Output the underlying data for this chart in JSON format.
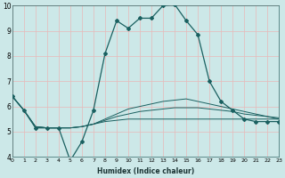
{
  "xlabel": "Humidex (Indice chaleur)",
  "background_color": "#cce8e8",
  "grid_color": "#e8b8b8",
  "line_color": "#1a6060",
  "x_min": 0,
  "x_max": 23,
  "y_min": 4,
  "y_max": 10,
  "line_main": {
    "x": [
      0,
      1,
      2,
      3,
      4,
      5,
      6,
      7,
      8,
      9,
      10,
      11,
      12,
      13,
      14,
      15,
      16,
      17,
      18,
      19,
      20,
      21,
      22,
      23
    ],
    "y": [
      6.4,
      5.85,
      5.15,
      5.15,
      5.15,
      3.85,
      4.6,
      5.85,
      8.1,
      9.4,
      9.1,
      9.5,
      9.5,
      10.0,
      10.05,
      9.4,
      8.85,
      7.0,
      6.2,
      5.85,
      5.5,
      5.4,
      5.4,
      5.4
    ]
  },
  "line_slow1": {
    "x": [
      0,
      1,
      2,
      3,
      4,
      5,
      6,
      7,
      8,
      9,
      10,
      11,
      12,
      13,
      14,
      15,
      16,
      17,
      18,
      19,
      20,
      21,
      22,
      23
    ],
    "y": [
      6.4,
      5.85,
      5.2,
      5.15,
      5.15,
      5.15,
      5.2,
      5.3,
      5.4,
      5.45,
      5.5,
      5.5,
      5.5,
      5.5,
      5.5,
      5.5,
      5.5,
      5.5,
      5.5,
      5.5,
      5.5,
      5.5,
      5.5,
      5.5
    ]
  },
  "line_slow2": {
    "x": [
      0,
      1,
      2,
      3,
      4,
      5,
      6,
      7,
      8,
      9,
      10,
      11,
      12,
      13,
      14,
      15,
      16,
      17,
      18,
      19,
      20,
      21,
      22,
      23
    ],
    "y": [
      6.4,
      5.85,
      5.2,
      5.15,
      5.15,
      5.15,
      5.2,
      5.3,
      5.45,
      5.6,
      5.7,
      5.8,
      5.85,
      5.9,
      5.95,
      5.95,
      5.95,
      5.9,
      5.85,
      5.8,
      5.7,
      5.65,
      5.6,
      5.55
    ]
  },
  "line_slow3": {
    "x": [
      0,
      1,
      2,
      3,
      4,
      5,
      6,
      7,
      8,
      9,
      10,
      11,
      12,
      13,
      14,
      15,
      16,
      17,
      18,
      19,
      20,
      21,
      22,
      23
    ],
    "y": [
      6.4,
      5.85,
      5.2,
      5.15,
      5.15,
      5.15,
      5.2,
      5.3,
      5.5,
      5.7,
      5.9,
      6.0,
      6.1,
      6.2,
      6.25,
      6.3,
      6.2,
      6.1,
      6.0,
      5.9,
      5.8,
      5.7,
      5.6,
      5.5
    ]
  }
}
